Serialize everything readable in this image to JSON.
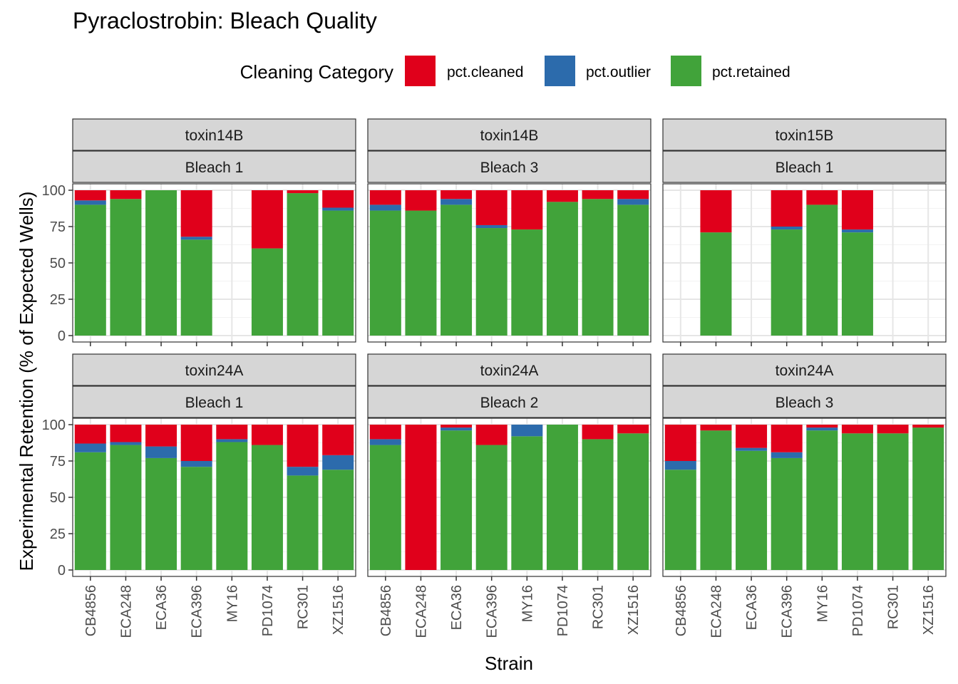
{
  "chart_data": {
    "type": "bar",
    "title": "Pyraclostrobin: Bleach Quality",
    "xlabel": "Strain",
    "ylabel": "Experimental Retention (% of Expected Wells)",
    "ylim": [
      0,
      100
    ],
    "yticks": [
      0,
      25,
      50,
      75,
      100
    ],
    "legend": {
      "title": "Cleaning Category",
      "position": "top",
      "entries": [
        {
          "key": "cleaned",
          "label": "pct.cleaned",
          "color": "#e0001b"
        },
        {
          "key": "outlier",
          "label": "pct.outlier",
          "color": "#2c6bac"
        },
        {
          "key": "retained",
          "label": "pct.retained",
          "color": "#41a33a"
        }
      ]
    },
    "categories": [
      "CB4856",
      "ECA248",
      "ECA36",
      "ECA396",
      "MY16",
      "PD1074",
      "RC301",
      "XZ1516"
    ],
    "stack_order": [
      "retained",
      "outlier",
      "cleaned"
    ],
    "panels": [
      {
        "toxin": "toxin14B",
        "bleach": "Bleach 1",
        "bars": [
          {
            "retained": 90,
            "outlier": 3,
            "cleaned": 7
          },
          {
            "retained": 94,
            "outlier": 0,
            "cleaned": 6
          },
          {
            "retained": 100,
            "outlier": 0,
            "cleaned": 0
          },
          {
            "retained": 66,
            "outlier": 2,
            "cleaned": 32
          },
          null,
          {
            "retained": 60,
            "outlier": 0,
            "cleaned": 40
          },
          {
            "retained": 98,
            "outlier": 0,
            "cleaned": 2
          },
          {
            "retained": 86,
            "outlier": 2,
            "cleaned": 12
          }
        ]
      },
      {
        "toxin": "toxin14B",
        "bleach": "Bleach 3",
        "bars": [
          {
            "retained": 86,
            "outlier": 4,
            "cleaned": 10
          },
          {
            "retained": 86,
            "outlier": 0,
            "cleaned": 14
          },
          {
            "retained": 90,
            "outlier": 4,
            "cleaned": 6
          },
          {
            "retained": 74,
            "outlier": 2,
            "cleaned": 24
          },
          {
            "retained": 73,
            "outlier": 0,
            "cleaned": 27
          },
          {
            "retained": 92,
            "outlier": 0,
            "cleaned": 8
          },
          {
            "retained": 94,
            "outlier": 0,
            "cleaned": 6
          },
          {
            "retained": 90,
            "outlier": 4,
            "cleaned": 6
          }
        ]
      },
      {
        "toxin": "toxin15B",
        "bleach": "Bleach 1",
        "bars": [
          null,
          {
            "retained": 71,
            "outlier": 0,
            "cleaned": 29
          },
          null,
          {
            "retained": 73,
            "outlier": 2,
            "cleaned": 25
          },
          {
            "retained": 90,
            "outlier": 0,
            "cleaned": 10
          },
          {
            "retained": 71,
            "outlier": 2,
            "cleaned": 27
          },
          null,
          null
        ]
      },
      {
        "toxin": "toxin24A",
        "bleach": "Bleach 1",
        "bars": [
          {
            "retained": 81,
            "outlier": 6,
            "cleaned": 13
          },
          {
            "retained": 86,
            "outlier": 2,
            "cleaned": 12
          },
          {
            "retained": 77,
            "outlier": 8,
            "cleaned": 15
          },
          {
            "retained": 71,
            "outlier": 4,
            "cleaned": 25
          },
          {
            "retained": 88,
            "outlier": 2,
            "cleaned": 10
          },
          {
            "retained": 86,
            "outlier": 0,
            "cleaned": 14
          },
          {
            "retained": 65,
            "outlier": 6,
            "cleaned": 29
          },
          {
            "retained": 69,
            "outlier": 10,
            "cleaned": 21
          }
        ]
      },
      {
        "toxin": "toxin24A",
        "bleach": "Bleach 2",
        "bars": [
          {
            "retained": 86,
            "outlier": 4,
            "cleaned": 10
          },
          {
            "retained": 0,
            "outlier": 0,
            "cleaned": 100
          },
          {
            "retained": 96,
            "outlier": 2,
            "cleaned": 2
          },
          {
            "retained": 86,
            "outlier": 0,
            "cleaned": 14
          },
          {
            "retained": 92,
            "outlier": 8,
            "cleaned": 0
          },
          {
            "retained": 100,
            "outlier": 0,
            "cleaned": 0
          },
          {
            "retained": 90,
            "outlier": 0,
            "cleaned": 10
          },
          {
            "retained": 94,
            "outlier": 0,
            "cleaned": 6
          }
        ]
      },
      {
        "toxin": "toxin24A",
        "bleach": "Bleach 3",
        "bars": [
          {
            "retained": 69,
            "outlier": 6,
            "cleaned": 25
          },
          {
            "retained": 96,
            "outlier": 0,
            "cleaned": 4
          },
          {
            "retained": 82,
            "outlier": 2,
            "cleaned": 16
          },
          {
            "retained": 77,
            "outlier": 4,
            "cleaned": 19
          },
          {
            "retained": 96,
            "outlier": 2,
            "cleaned": 2
          },
          {
            "retained": 94,
            "outlier": 0,
            "cleaned": 6
          },
          {
            "retained": 94,
            "outlier": 0,
            "cleaned": 6
          },
          {
            "retained": 98,
            "outlier": 0,
            "cleaned": 2
          }
        ]
      }
    ]
  }
}
